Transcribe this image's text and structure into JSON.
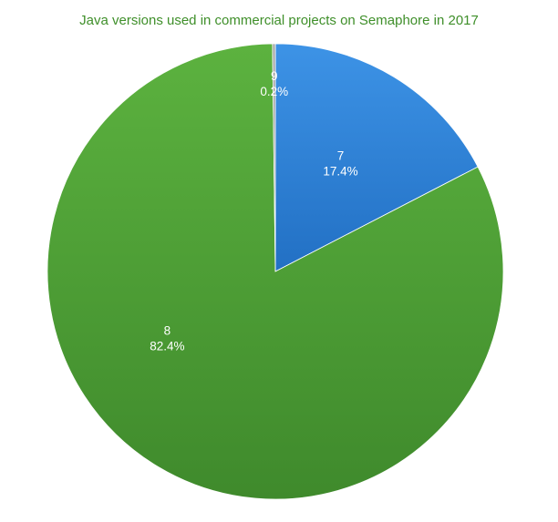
{
  "chart_data": {
    "type": "pie",
    "title": "Java versions used in commercial projects on Semaphore in 2017",
    "slices": [
      {
        "label": "7",
        "value": 17.4,
        "percent_label": "17.4%",
        "color": "#2f83d9",
        "color_light": "#3d93e6",
        "color_dark": "#2270c4"
      },
      {
        "label": "8",
        "value": 82.4,
        "percent_label": "82.4%",
        "color": "#4f9e37",
        "color_light": "#5cb23f",
        "color_dark": "#3f8a2c"
      },
      {
        "label": "9",
        "value": 0.2,
        "percent_label": "0.2%",
        "color": "#9a9a9a",
        "color_light": "#a8a8a8",
        "color_dark": "#8a8a8a"
      }
    ],
    "start_angle_deg": 0,
    "direction": "clockwise",
    "legend": "none"
  }
}
